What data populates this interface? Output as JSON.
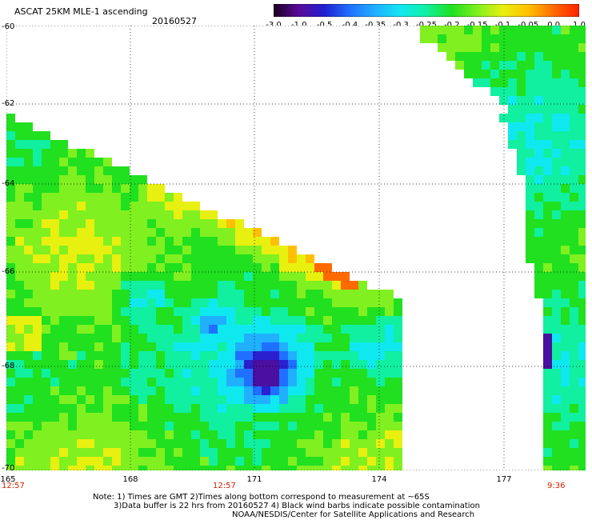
{
  "header": {
    "title": "ASCAT 25KM MLE-1 ascending",
    "date": "20160527"
  },
  "colorbar": {
    "labels": [
      "-3.0",
      "-1.0",
      "-0.5",
      "-0.4",
      "-0.35",
      "-0.3",
      "-0.25",
      "-0.2",
      "-0.15",
      "-0.1",
      "-0.05",
      "0.0",
      "1.0"
    ],
    "colors": [
      "#1a0020",
      "#5a0a9a",
      "#2020d0",
      "#2070ff",
      "#20b0ff",
      "#10e8f0",
      "#10f0a0",
      "#20e020",
      "#80f020",
      "#e8f010",
      "#ffc000",
      "#ff6a00",
      "#ff2000"
    ]
  },
  "map": {
    "lat_labels": [
      "-60",
      "-62",
      "-64",
      "-66",
      "-68",
      "-70"
    ],
    "lon_labels": [
      "165",
      "168",
      "171",
      "174",
      "177"
    ],
    "times": [
      "12:57",
      "12:57",
      "9:36"
    ]
  },
  "notes": {
    "line1": "Note: 1) Times are GMT 2)Times along bottom correspond to measurement at ~65S",
    "line2": "3)Data buffer is 22 hrs from 20160527 4) Black wind barbs indicate possible contamination",
    "line3": "NOAA/NESDIS/Center for Satellite Applications and Research"
  }
}
